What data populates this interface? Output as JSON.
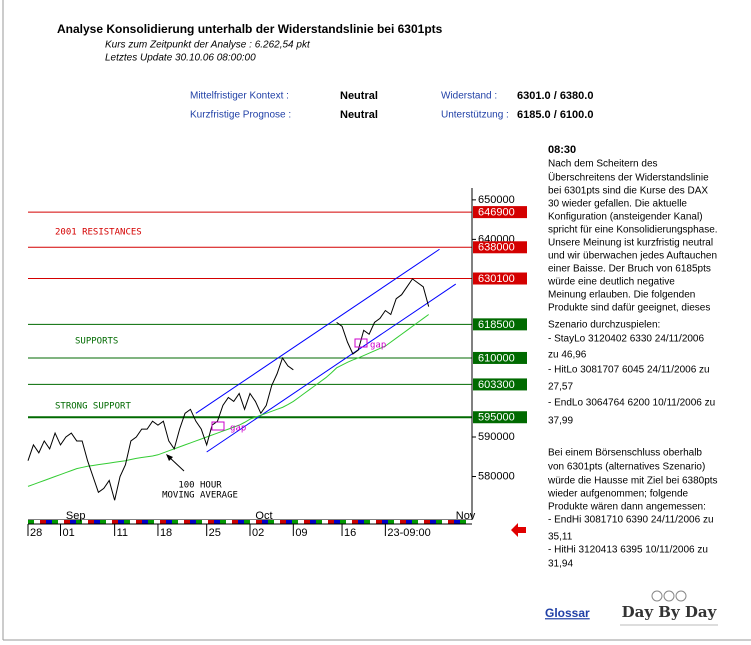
{
  "header": {
    "title": "Analyse Konsolidierung unterhalb der Widerstandslinie bei 6301pts",
    "price_line": "Kurs zum Zeitpunkt der Analyse : 6.262,54 pkt",
    "update_line": "Letztes Update 30.10.06 08:00:00"
  },
  "summary": {
    "rows": [
      [
        "Mittelfristiger Kontext :",
        "Neutral",
        "Widerstand :",
        "6301.0 / 6380.0"
      ],
      [
        "Kurzfristige Prognose :",
        "Neutral",
        "Unterstützung :",
        "6185.0 / 6100.0"
      ]
    ]
  },
  "commentary": {
    "time": "08:30",
    "lines": [
      "Nach dem Scheitern des",
      "Überschreitens der Widerstandslinie",
      "bei 6301pts sind die Kurse des DAX",
      "30 wieder gefallen. Die aktuelle",
      "Konfiguration (ansteigender Kanal)",
      "spricht für eine Konsolidierungsphase.",
      "Unsere Meinung ist kurzfristig neutral",
      "und wir überwachen jedes Auftauchen",
      "einer Baisse. Der Bruch von 6185pts",
      "würde eine deutlich negative",
      "Meinung erlauben. Die folgenden",
      "Produkte sind dafür geeignet, dieses",
      "Szenario durchzuspielen:",
      "- StayLo 3120402 6330 24/11/2006",
      "zu 46,96",
      "- HitLo 3081707 6045 24/11/2006 zu",
      "27,57",
      "- EndLo 3064764 6200 10/11/2006 zu",
      "37,99",
      "Bei einem Börsenschluss oberhalb",
      "von 6301pts (alternatives Szenario)",
      "würde die Hausse mit Ziel bei 6380pts",
      "wieder aufgenommen; folgende",
      "Produkte wären dann angemessen:",
      "- EndHi 3081710 6390 24/11/2006 zu",
      "35,11",
      "- HitHi 3120413 6395 10/11/2006 zu",
      "31,94"
    ]
  },
  "footer": {
    "link": "Glossar",
    "logo": "Day By Day"
  },
  "chart_data": {
    "type": "line",
    "xlim": [
      0,
      82
    ],
    "ylim": [
      569000,
      653000
    ],
    "yticks": [
      580000,
      590000,
      640000,
      650000
    ],
    "xticks": [
      {
        "value": 0,
        "label": "28"
      },
      {
        "value": 6,
        "label": "01"
      },
      {
        "value": 16,
        "label": "11"
      },
      {
        "value": 24,
        "label": "18"
      },
      {
        "value": 33,
        "label": "25"
      },
      {
        "value": 41,
        "label": "02"
      },
      {
        "value": 49,
        "label": "09"
      },
      {
        "value": 58,
        "label": "16"
      },
      {
        "value": 66,
        "label": "23-09:00"
      }
    ],
    "month_ticks": [
      {
        "value": 7,
        "label": "Sep"
      },
      {
        "value": 42,
        "label": "Oct"
      },
      {
        "value": 79,
        "label": "Nov"
      }
    ],
    "series": [
      {
        "color": "#000000",
        "values": [
          584000,
          588000,
          586000,
          589000,
          587000,
          591000,
          588000,
          590000,
          591000,
          589000,
          589000,
          584000,
          580000,
          576000,
          577000,
          579000,
          574000,
          580000,
          583000,
          589000,
          590000,
          592000,
          592000,
          594000,
          593000,
          594000,
          589000,
          587000,
          592000,
          596000,
          597000,
          594000,
          592000,
          588000,
          593000,
          594000,
          598000,
          600000,
          599000,
          601000,
          597000,
          601000,
          599000,
          596000,
          598000,
          603000,
          606000,
          610000,
          608000,
          607000,
          null,
          null,
          null,
          null,
          null,
          null,
          null,
          619000,
          618000,
          614000,
          611000,
          612000,
          617000,
          616000,
          619000,
          620000,
          622000,
          621000,
          625000,
          626000,
          628000,
          630000,
          629000,
          628000,
          623000
        ]
      },
      {
        "color": "#33cc33",
        "values": [
          577500,
          578000,
          578500,
          579000,
          579500,
          580000,
          580500,
          581000,
          581500,
          582000,
          582300,
          582600,
          582800,
          583000,
          583200,
          583400,
          583600,
          583800,
          584000,
          584300,
          584600,
          584800,
          585000,
          585200,
          585500,
          586000,
          586500,
          587000,
          587500,
          588000,
          588500,
          589000,
          589500,
          590000,
          590500,
          591000,
          591500,
          592000,
          592500,
          593000,
          593700,
          594500,
          595000,
          595500,
          596000,
          596500,
          597000,
          597500,
          598200,
          599000,
          600000,
          601000,
          602000,
          603000,
          604000,
          605000,
          606200,
          607500,
          608200,
          608900,
          609500,
          610000,
          610600,
          611200,
          611800,
          612400,
          613000,
          614000,
          615000,
          616000,
          617000,
          618000,
          619000,
          620000,
          621000
        ]
      }
    ],
    "levels": [
      {
        "value": 646900,
        "color": "#d40000"
      },
      {
        "value": 638000,
        "color": "#d40000"
      },
      {
        "value": 630100,
        "color": "#d40000"
      },
      {
        "value": 618500,
        "color": "#006a00"
      },
      {
        "value": 610000,
        "color": "#006a00"
      },
      {
        "value": 603300,
        "color": "#006a00"
      },
      {
        "value": 595000,
        "color": "#006a00"
      }
    ],
    "trend_lines": [
      {
        "color": "#0000ff",
        "x": [
          31,
          76
        ],
        "values": [
          596000,
          637500
        ]
      },
      {
        "color": "#0000ff",
        "x": [
          33,
          79
        ],
        "values": [
          586200,
          628700
        ]
      }
    ],
    "annotations": [
      {
        "text": "2001 RESISTANCES",
        "color": "#d40000"
      },
      {
        "text": "SUPPORTS",
        "color": "#006a00"
      },
      {
        "text": "STRONG SUPPORT",
        "color": "#006a00"
      },
      {
        "text": "100 HOUR",
        "color": "#000000"
      },
      {
        "text": "MOVING AVERAGE",
        "color": "#000000"
      },
      {
        "text": "gap",
        "color": "#cc00cc"
      },
      {
        "text": "gap",
        "color": "#cc00cc"
      }
    ]
  }
}
